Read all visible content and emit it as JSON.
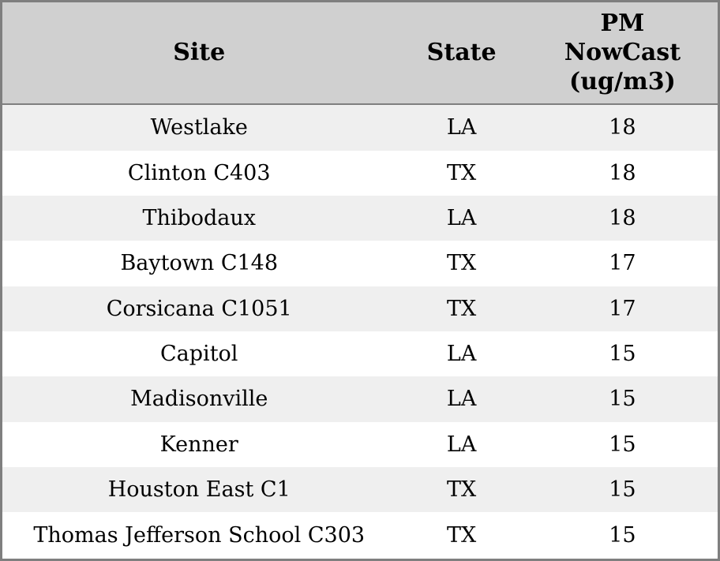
{
  "colors": {
    "header_background": "#d0d0d0",
    "stripe_row_background": "#efefef",
    "plain_row_background": "#ffffff",
    "border": "#7f7f7f",
    "text": "#000000"
  },
  "table": {
    "columns": [
      {
        "key": "site",
        "label": "Site"
      },
      {
        "key": "state",
        "label": "State"
      },
      {
        "key": "pm_nowcast",
        "label": "PM NowCast (ug/m3)",
        "label_lines": [
          "PM",
          "NowCast",
          "(ug/m3)"
        ]
      }
    ],
    "rows": [
      {
        "site": "Westlake",
        "state": "LA",
        "pm_nowcast": "18"
      },
      {
        "site": "Clinton C403",
        "state": "TX",
        "pm_nowcast": "18"
      },
      {
        "site": "Thibodaux",
        "state": "LA",
        "pm_nowcast": "18"
      },
      {
        "site": "Baytown C148",
        "state": "TX",
        "pm_nowcast": "17"
      },
      {
        "site": "Corsicana C1051",
        "state": "TX",
        "pm_nowcast": "17"
      },
      {
        "site": "Capitol",
        "state": "LA",
        "pm_nowcast": "15"
      },
      {
        "site": "Madisonville",
        "state": "LA",
        "pm_nowcast": "15"
      },
      {
        "site": "Kenner",
        "state": "LA",
        "pm_nowcast": "15"
      },
      {
        "site": "Houston East C1",
        "state": "TX",
        "pm_nowcast": "15"
      },
      {
        "site": "Thomas Jefferson School C303",
        "state": "TX",
        "pm_nowcast": "15"
      }
    ]
  },
  "chart_data": {
    "type": "table",
    "title": "",
    "columns": [
      "Site",
      "State",
      "PM NowCast (ug/m3)"
    ],
    "categories": [
      "Westlake",
      "Clinton C403",
      "Thibodaux",
      "Baytown C148",
      "Corsicana C1051",
      "Capitol",
      "Madisonville",
      "Kenner",
      "Houston East C1",
      "Thomas Jefferson School C303"
    ],
    "series": [
      {
        "name": "State",
        "values": [
          "LA",
          "TX",
          "LA",
          "TX",
          "TX",
          "LA",
          "LA",
          "LA",
          "TX",
          "TX"
        ]
      },
      {
        "name": "PM NowCast (ug/m3)",
        "values": [
          18,
          18,
          18,
          17,
          17,
          15,
          15,
          15,
          15,
          15
        ]
      }
    ]
  }
}
